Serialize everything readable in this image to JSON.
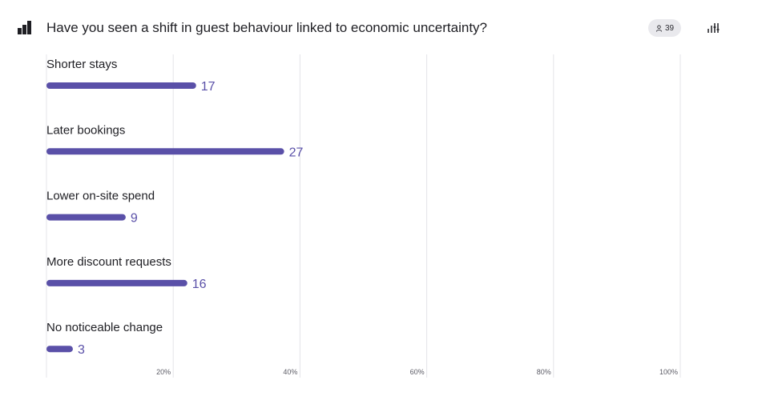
{
  "header": {
    "logo_icon": "mentimeter-logo-icon",
    "title": "Have you seen a shift in guest behaviour linked to economic uncertainty?",
    "participants_icon": "person-icon",
    "participants_count": "39",
    "settings_icon": "sliders-icon"
  },
  "chart_data": {
    "type": "bar",
    "orientation": "horizontal",
    "categories": [
      "Shorter stays",
      "Later bookings",
      "Lower on-site spend",
      "More discount requests",
      "No noticeable change"
    ],
    "values": [
      17,
      27,
      9,
      16,
      3
    ],
    "x_tick_labels": [
      "20%",
      "40%",
      "60%",
      "80%",
      "100%"
    ],
    "grid": true,
    "bar_color": "#5a50a8",
    "label_color": "#5a50a8"
  }
}
